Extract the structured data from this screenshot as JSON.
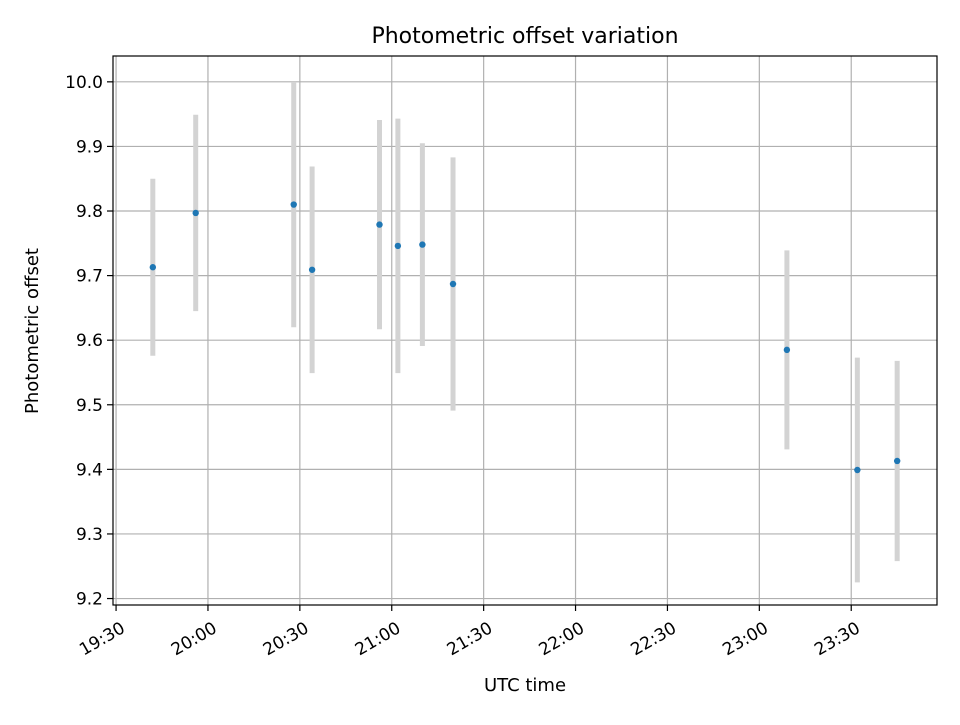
{
  "chart_data": {
    "type": "scatter",
    "title": "Photometric offset variation",
    "xlabel": "UTC time",
    "ylabel": "Photometric offset",
    "x_ticks": [
      "19:30",
      "20:00",
      "20:30",
      "21:00",
      "21:30",
      "22:00",
      "22:30",
      "23:00",
      "23:30"
    ],
    "y_ticks": [
      "9.2",
      "9.3",
      "9.4",
      "9.5",
      "9.6",
      "9.7",
      "9.8",
      "9.9",
      "10.0"
    ],
    "xlim": [
      "19:29",
      "23:58"
    ],
    "ylim": [
      9.19,
      10.04
    ],
    "grid": true,
    "colors": {
      "point": "#1f77b4",
      "errorbar": "#d3d3d3",
      "grid": "#b0b0b0"
    },
    "series": [
      {
        "points": [
          {
            "time": "19:42",
            "y": 9.713,
            "err": 0.137
          },
          {
            "time": "19:56",
            "y": 9.797,
            "err": 0.152
          },
          {
            "time": "20:28",
            "y": 9.81,
            "err": 0.19
          },
          {
            "time": "20:34",
            "y": 9.709,
            "err": 0.16
          },
          {
            "time": "20:56",
            "y": 9.779,
            "err": 0.162
          },
          {
            "time": "21:02",
            "y": 9.746,
            "err": 0.197
          },
          {
            "time": "21:10",
            "y": 9.748,
            "err": 0.157
          },
          {
            "time": "21:20",
            "y": 9.687,
            "err": 0.196
          },
          {
            "time": "23:09",
            "y": 9.585,
            "err": 0.154
          },
          {
            "time": "23:32",
            "y": 9.399,
            "err": 0.174
          },
          {
            "time": "23:45",
            "y": 9.413,
            "err": 0.155
          }
        ]
      }
    ]
  }
}
